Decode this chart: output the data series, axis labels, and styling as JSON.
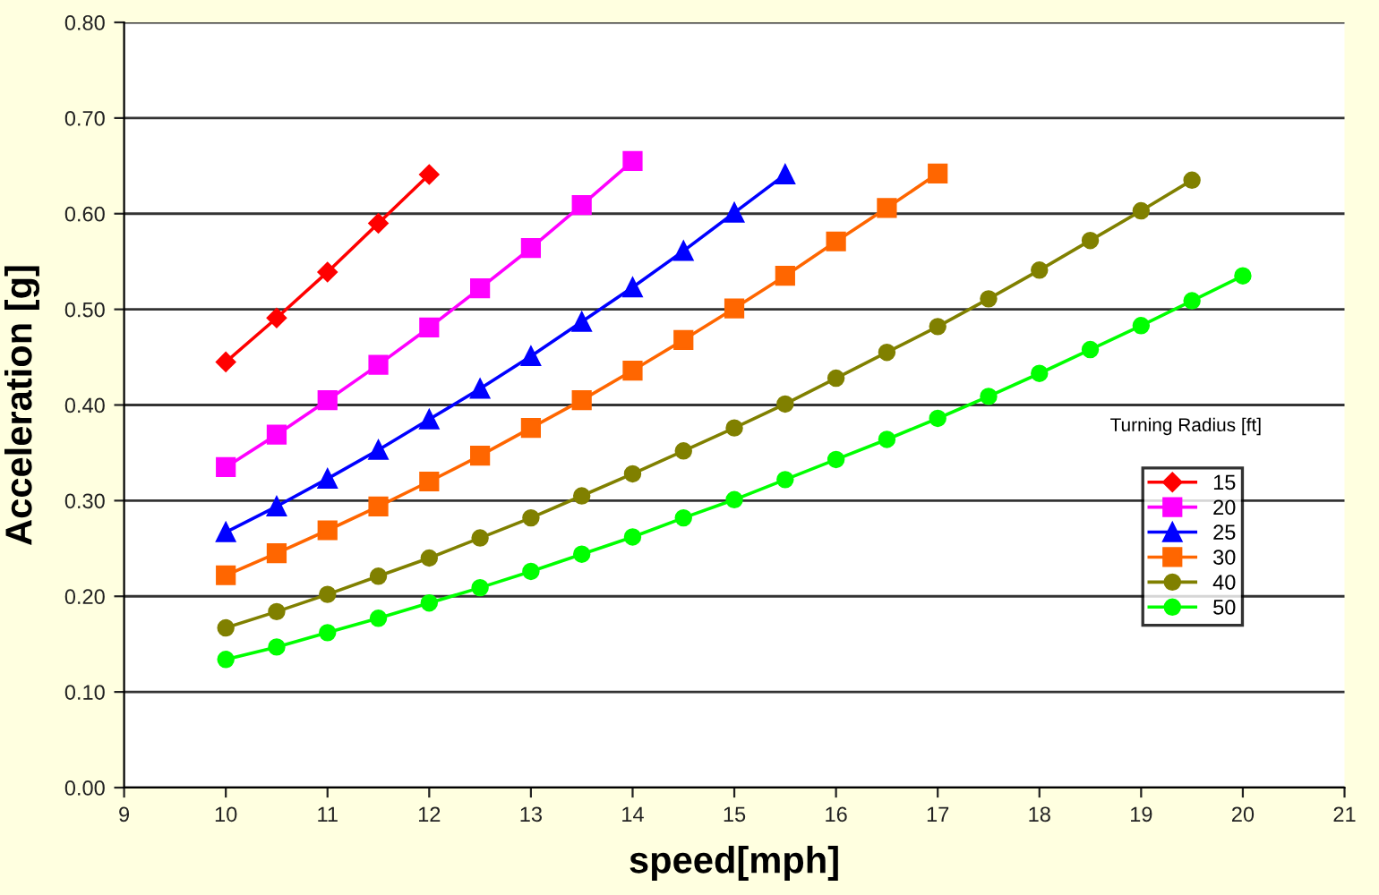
{
  "chart_data": {
    "type": "line",
    "xlabel": "speed[mph]",
    "ylabel": "Acceleration [g]",
    "legend_title": "Turning Radius [ft]",
    "xlim": [
      9,
      21
    ],
    "xticks": [
      9,
      10,
      11,
      12,
      13,
      14,
      15,
      16,
      17,
      18,
      19,
      20,
      21
    ],
    "ylim": [
      0,
      0.8
    ],
    "yticks": [
      {
        "value": 0,
        "label": "0.00"
      },
      {
        "value": 0.1,
        "label": "0.10"
      },
      {
        "value": 0.2,
        "label": "0.20"
      },
      {
        "value": 0.3,
        "label": "0.30"
      },
      {
        "value": 0.4,
        "label": "0.40"
      },
      {
        "value": 0.5,
        "label": "0.50"
      },
      {
        "value": 0.6,
        "label": "0.60"
      },
      {
        "value": 0.7,
        "label": "0.70"
      },
      {
        "value": 0.8,
        "label": "0.80"
      }
    ],
    "grid": "y",
    "legend": "right",
    "line_style": "solid",
    "series": [
      {
        "name": "15",
        "color": "#ff0000",
        "marker": "diamond",
        "x": [
          10,
          10.5,
          11,
          11.5,
          12
        ],
        "values": [
          0.445,
          0.491,
          0.539,
          0.59,
          0.641
        ]
      },
      {
        "name": "20",
        "color": "#ff00ff",
        "marker": "square",
        "x": [
          10,
          10.5,
          11,
          11.5,
          12,
          12.5,
          13,
          13.5,
          14
        ],
        "values": [
          0.335,
          0.369,
          0.405,
          0.442,
          0.481,
          0.522,
          0.564,
          0.609,
          0.655
        ]
      },
      {
        "name": "25",
        "color": "#0000ff",
        "marker": "triangle",
        "x": [
          10,
          10.5,
          11,
          11.5,
          12,
          12.5,
          13,
          13.5,
          14,
          14.5,
          15,
          15.5
        ],
        "values": [
          0.267,
          0.294,
          0.323,
          0.353,
          0.385,
          0.417,
          0.451,
          0.487,
          0.523,
          0.561,
          0.601,
          0.641
        ]
      },
      {
        "name": "30",
        "color": "#ff6600",
        "marker": "square",
        "x": [
          10,
          10.5,
          11,
          11.5,
          12,
          12.5,
          13,
          13.5,
          14,
          14.5,
          15,
          15.5,
          16,
          16.5,
          17
        ],
        "values": [
          0.222,
          0.245,
          0.269,
          0.294,
          0.32,
          0.347,
          0.376,
          0.405,
          0.436,
          0.468,
          0.501,
          0.535,
          0.571,
          0.606,
          0.642
        ]
      },
      {
        "name": "40",
        "color": "#808000",
        "marker": "circle",
        "x": [
          10,
          10.5,
          11,
          11.5,
          12,
          12.5,
          13,
          13.5,
          14,
          14.5,
          15,
          15.5,
          16,
          16.5,
          17,
          17.5,
          18,
          18.5,
          19,
          19.5
        ],
        "values": [
          0.167,
          0.184,
          0.202,
          0.221,
          0.24,
          0.261,
          0.282,
          0.305,
          0.328,
          0.352,
          0.376,
          0.401,
          0.428,
          0.455,
          0.482,
          0.511,
          0.541,
          0.572,
          0.603,
          0.635
        ]
      },
      {
        "name": "50",
        "color": "#00ff00",
        "marker": "circle",
        "x": [
          10,
          10.5,
          11,
          11.5,
          12,
          12.5,
          13,
          13.5,
          14,
          14.5,
          15,
          15.5,
          16,
          16.5,
          17,
          17.5,
          18,
          18.5,
          19,
          19.5,
          20
        ],
        "values": [
          0.134,
          0.147,
          0.162,
          0.177,
          0.193,
          0.209,
          0.226,
          0.244,
          0.262,
          0.282,
          0.301,
          0.322,
          0.343,
          0.364,
          0.386,
          0.409,
          0.433,
          0.458,
          0.483,
          0.509,
          0.535
        ]
      }
    ]
  }
}
